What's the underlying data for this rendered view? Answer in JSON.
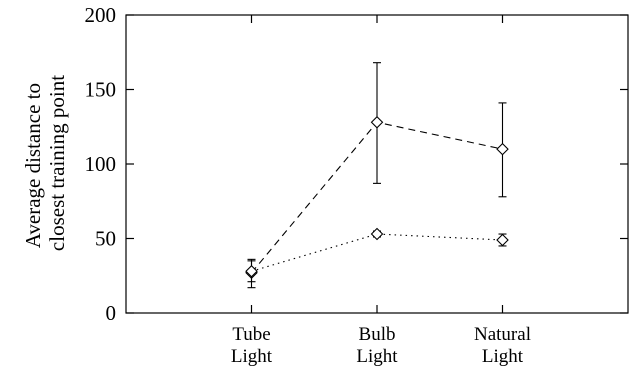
{
  "chart_data": {
    "type": "line",
    "categories": [
      "Tube Light",
      "Bulb Light",
      "Natural Light"
    ],
    "category_label_lines": [
      [
        "Tube",
        "Light"
      ],
      [
        "Bulb",
        "Light"
      ],
      [
        "Natural",
        "Light"
      ]
    ],
    "x_domain": [
      0.5,
      4.5
    ],
    "x_positions": [
      1.5,
      2.5,
      3.5
    ],
    "ylabel_lines": [
      "Average distance to",
      "closest training point"
    ],
    "ylim": [
      0,
      200
    ],
    "yticks": [
      0,
      50,
      100,
      150,
      200
    ],
    "grid": false,
    "legend": "none",
    "series": [
      {
        "style": "dashed",
        "marker": "diamond",
        "color": "#000000",
        "values": [
          27,
          128,
          110
        ],
        "error_low": [
          17,
          87,
          78
        ],
        "error_high": [
          36,
          168,
          141
        ]
      },
      {
        "style": "dotted",
        "marker": "diamond",
        "color": "#000000",
        "values": [
          28,
          53,
          49
        ],
        "error_low": [
          21,
          51,
          45
        ],
        "error_high": [
          35,
          55,
          53
        ]
      }
    ]
  }
}
